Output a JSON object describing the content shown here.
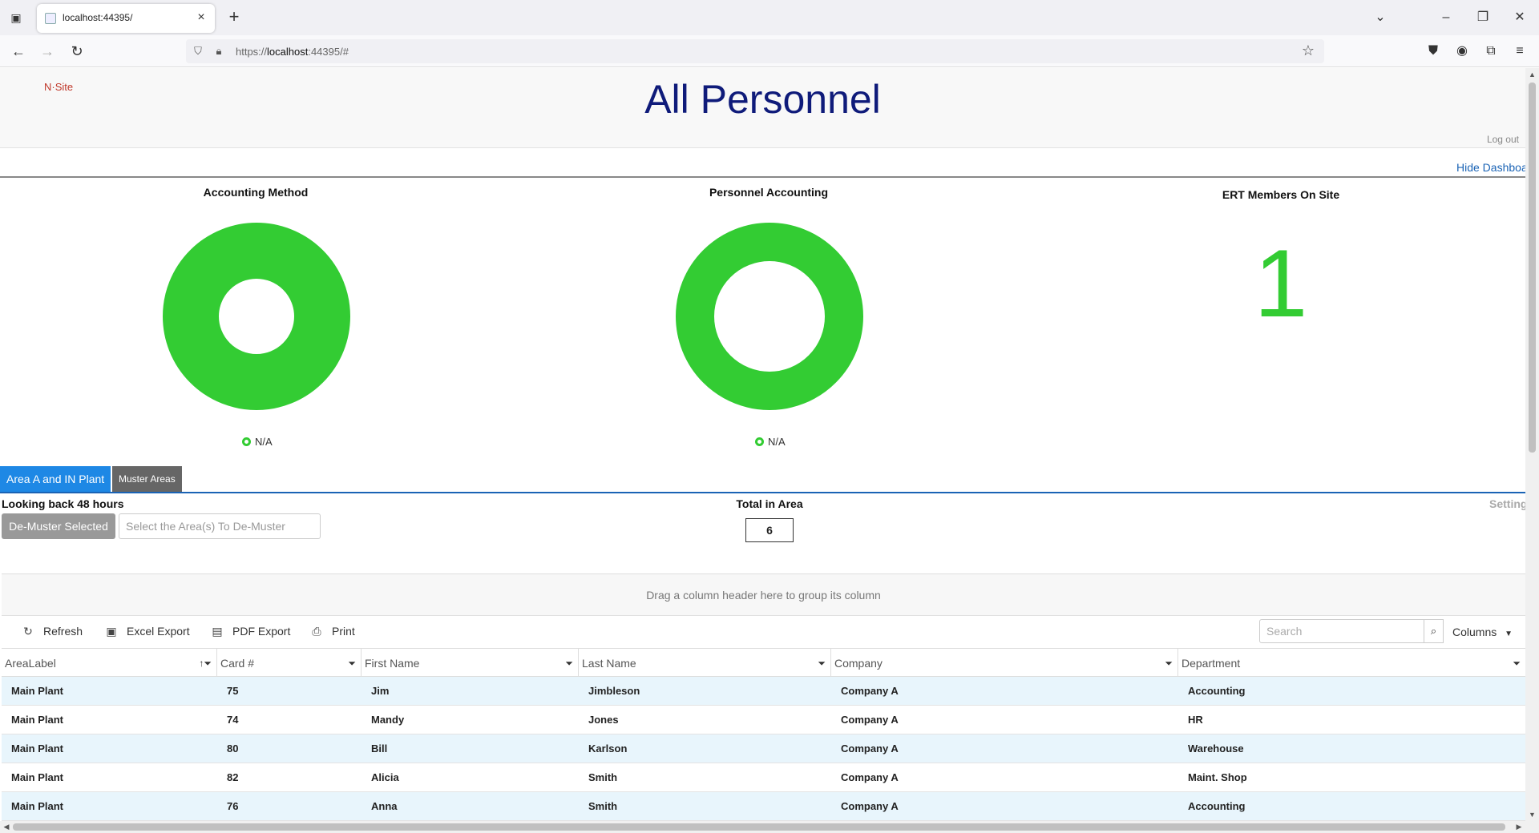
{
  "browser": {
    "tab_title": "localhost:44395/",
    "url_prefix": "https://",
    "url_host": "localhost",
    "url_rest": ":44395/#"
  },
  "header": {
    "logo_text": "N·Site",
    "title": "All Personnel",
    "logout": "Log out",
    "hide_dashboard": "Hide Dashboard"
  },
  "dashboard": {
    "accounting_method": {
      "title": "Accounting Method",
      "legend": "N/A",
      "color": "#33cc33"
    },
    "personnel_accounting": {
      "title": "Personnel Accounting",
      "legend": "N/A",
      "color": "#33cc33"
    },
    "ert": {
      "title": "ERT Members On Site",
      "count": "1",
      "color": "#33cc33"
    }
  },
  "area_tabs": {
    "active": "Area A and IN Plant",
    "other": "Muster Areas"
  },
  "muster": {
    "looking_back": "Looking back 48 hours",
    "demuster_button": "De-Muster Selected",
    "area_placeholder": "Select the Area(s) To De-Muster",
    "total_label": "Total in Area",
    "total_value": "6",
    "settings": "Settings"
  },
  "grid": {
    "group_hint": "Drag a column header here to group its column",
    "toolbar": {
      "refresh": "Refresh",
      "excel": "Excel Export",
      "pdf": "PDF Export",
      "print": "Print",
      "search_placeholder": "Search",
      "columns": "Columns"
    },
    "columns": [
      "AreaLabel",
      "Card #",
      "First Name",
      "Last Name",
      "Company",
      "Department"
    ],
    "rows": [
      [
        "Main Plant",
        "75",
        "Jim",
        "Jimbleson",
        "Company A",
        "Accounting"
      ],
      [
        "Main Plant",
        "74",
        "Mandy",
        "Jones",
        "Company A",
        "HR"
      ],
      [
        "Main Plant",
        "80",
        "Bill",
        "Karlson",
        "Company A",
        "Warehouse"
      ],
      [
        "Main Plant",
        "82",
        "Alicia",
        "Smith",
        "Company A",
        "Maint. Shop"
      ],
      [
        "Main Plant",
        "76",
        "Anna",
        "Smith",
        "Company A",
        "Accounting"
      ]
    ]
  }
}
